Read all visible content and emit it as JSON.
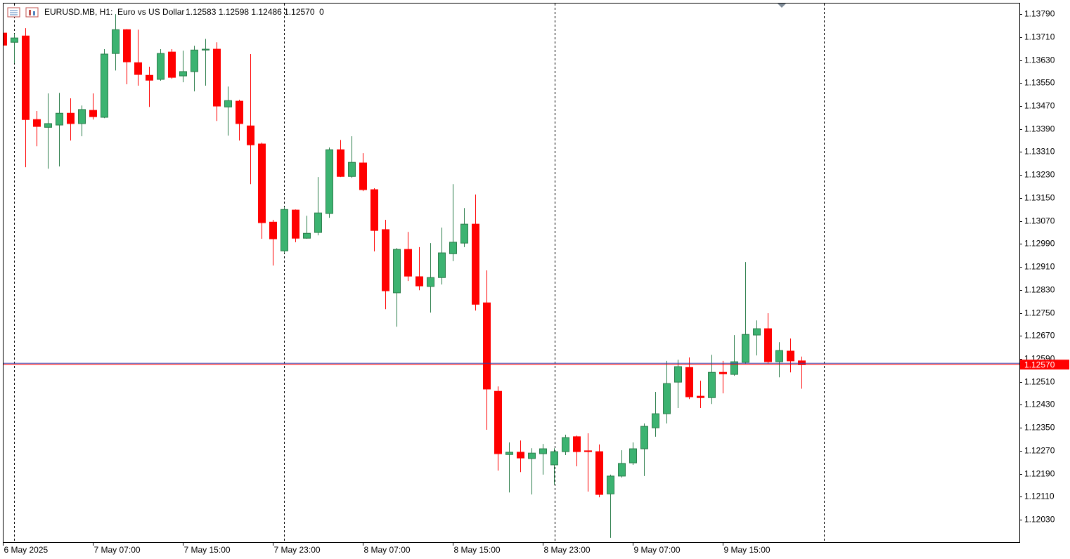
{
  "chart_data": {
    "type": "candlestick",
    "title": "EURUSD.MB, H1:  Euro vs US Dollar",
    "info": "1.12583 1.12598 1.12486 1.12570  0",
    "up_color": "#3cb371",
    "down_color": "#ff0000",
    "categories": [
      "6 May 2025",
      null,
      null,
      null,
      null,
      null,
      null,
      null,
      "7 May 07:00",
      null,
      null,
      null,
      null,
      null,
      null,
      null,
      "7 May 15:00",
      null,
      null,
      null,
      null,
      null,
      null,
      null,
      "7 May 23:00",
      null,
      null,
      null,
      null,
      null,
      null,
      null,
      "8 May 07:00",
      null,
      null,
      null,
      null,
      null,
      null,
      null,
      "8 May 15:00",
      null,
      null,
      null,
      null,
      null,
      null,
      null,
      "8 May 23:00",
      null,
      null,
      null,
      null,
      null,
      null,
      null,
      "9 May 07:00",
      null,
      null,
      null,
      null,
      null,
      null,
      null,
      "9 May 15:00",
      null,
      null,
      null,
      null,
      null,
      null,
      null
    ],
    "open": [
      1.13724,
      1.13692,
      1.13714,
      1.13423,
      1.13396,
      1.13404,
      1.13445,
      1.13409,
      1.13455,
      1.13431,
      1.13653,
      1.13736,
      1.13621,
      1.13577,
      1.13563,
      1.13658,
      1.13575,
      1.1359,
      1.13665,
      1.13668,
      1.13467,
      1.13487,
      1.13401,
      1.13338,
      1.13066,
      1.12966,
      1.13108,
      1.1301,
      1.1303,
      1.13096,
      1.13318,
      1.13225,
      1.13272,
      1.13179,
      1.1304,
      1.1282,
      1.12971,
      1.12876,
      1.12842,
      1.12873,
      1.12956,
      1.12993,
      1.13059,
      1.12785,
      1.12477,
      1.12257,
      1.12265,
      1.12243,
      1.1226,
      1.12221,
      1.12267,
      1.12319,
      1.1227,
      1.12267,
      1.1212,
      1.12182,
      1.12228,
      1.12277,
      1.1235,
      1.12399,
      1.12509,
      1.1256,
      1.1246,
      1.12455,
      1.12543,
      1.12536,
      1.12578,
      1.12673,
      1.12695,
      1.1258,
      1.12617,
      1.12583
    ],
    "high": [
      1.13741,
      1.13722,
      1.13741,
      1.13453,
      1.13514,
      1.13516,
      1.13497,
      1.13472,
      1.13514,
      1.13668,
      1.1379,
      1.13738,
      1.13736,
      1.13607,
      1.13668,
      1.13668,
      1.13663,
      1.1368,
      1.13704,
      1.13692,
      1.13538,
      1.13492,
      1.13651,
      1.13343,
      1.13074,
      1.13118,
      1.1311,
      1.13088,
      1.13223,
      1.13326,
      1.13352,
      1.13365,
      1.13306,
      1.13184,
      1.13074,
      1.12976,
      1.13032,
      1.12979,
      1.12993,
      1.13047,
      1.13198,
      1.13115,
      1.13162,
      1.12898,
      1.12494,
      1.12299,
      1.12306,
      1.12279,
      1.12294,
      1.12279,
      1.12326,
      1.12323,
      1.12331,
      1.12292,
      1.12187,
      1.12272,
      1.12299,
      1.12365,
      1.12475,
      1.12583,
      1.12587,
      1.12595,
      1.12514,
      1.12604,
      1.12583,
      1.12673,
      1.12927,
      1.12724,
      1.12749,
      1.12648,
      1.12661,
      1.12598
    ],
    "low": [
      1.1368,
      1.13619,
      1.13257,
      1.1333,
      1.13252,
      1.1326,
      1.1335,
      1.13365,
      1.13423,
      1.13428,
      1.13594,
      1.13546,
      1.13541,
      1.13467,
      1.13558,
      1.13565,
      1.13553,
      1.13521,
      1.13541,
      1.13418,
      1.13367,
      1.1335,
      1.13198,
      1.13008,
      1.12915,
      1.12959,
      1.12996,
      1.13008,
      1.1302,
      1.13081,
      1.13223,
      1.1322,
      1.13174,
      1.12964,
      1.12763,
      1.12702,
      1.12861,
      1.12829,
      1.12751,
      1.12849,
      1.1293,
      1.12979,
      1.12758,
      1.12343,
      1.12201,
      1.12125,
      1.12196,
      1.12118,
      1.12187,
      1.12152,
      1.12255,
      1.12216,
      1.12128,
      1.12108,
      1.11967,
      1.12177,
      1.12221,
      1.12182,
      1.12319,
      1.12365,
      1.12419,
      1.1245,
      1.12419,
      1.12433,
      1.1247,
      1.12531,
      1.12573,
      1.12602,
      1.12573,
      1.12526,
      1.12543,
      1.12486
    ],
    "close": [
      1.13682,
      1.13707,
      1.13423,
      1.13399,
      1.13409,
      1.13445,
      1.13409,
      1.13458,
      1.13433,
      1.13651,
      1.13736,
      1.13624,
      1.1358,
      1.1356,
      1.13653,
      1.1357,
      1.1359,
      1.13665,
      1.13668,
      1.1347,
      1.13489,
      1.13409,
      1.13335,
      1.13064,
      1.13008,
      1.1311,
      1.1301,
      1.13027,
      1.13098,
      1.13318,
      1.13225,
      1.13274,
      1.13179,
      1.13037,
      1.12827,
      1.12971,
      1.12878,
      1.12844,
      1.12873,
      1.12959,
      1.12996,
      1.13059,
      1.1278,
      1.12485,
      1.1226,
      1.12265,
      1.12245,
      1.12262,
      1.12277,
      1.12267,
      1.12316,
      1.12267,
      1.12267,
      1.12118,
      1.12182,
      1.12226,
      1.12277,
      1.12355,
      1.12399,
      1.12504,
      1.12563,
      1.12458,
      1.12455,
      1.12543,
      1.12538,
      1.1258,
      1.12675,
      1.12695,
      1.1258,
      1.12619,
      1.12583,
      1.1257
    ],
    "ylim": [
      1.11952,
      1.13827
    ],
    "yticks": [
      {
        "value": 1.1379,
        "label": "1.13790"
      },
      {
        "value": 1.1371,
        "label": "1.13710"
      },
      {
        "value": 1.1363,
        "label": "1.13630"
      },
      {
        "value": 1.1355,
        "label": "1.13550"
      },
      {
        "value": 1.1347,
        "label": "1.13470"
      },
      {
        "value": 1.1339,
        "label": "1.13390"
      },
      {
        "value": 1.1331,
        "label": "1.13310"
      },
      {
        "value": 1.1323,
        "label": "1.13230"
      },
      {
        "value": 1.1315,
        "label": "1.13150"
      },
      {
        "value": 1.1307,
        "label": "1.13070"
      },
      {
        "value": 1.1299,
        "label": "1.12990"
      },
      {
        "value": 1.1291,
        "label": "1.12910"
      },
      {
        "value": 1.1283,
        "label": "1.12830"
      },
      {
        "value": 1.1275,
        "label": "1.12750"
      },
      {
        "value": 1.1267,
        "label": "1.12670"
      },
      {
        "value": 1.1259,
        "label": "1.12590"
      },
      {
        "value": 1.1251,
        "label": "1.12510"
      },
      {
        "value": 1.1243,
        "label": "1.12430"
      },
      {
        "value": 1.1235,
        "label": "1.12350"
      },
      {
        "value": 1.1227,
        "label": "1.12270"
      },
      {
        "value": 1.1219,
        "label": "1.12190"
      },
      {
        "value": 1.1211,
        "label": "1.12110"
      },
      {
        "value": 1.1203,
        "label": "1.12030"
      }
    ],
    "price_label": {
      "value": 1.1257,
      "label": "1.12570"
    }
  }
}
